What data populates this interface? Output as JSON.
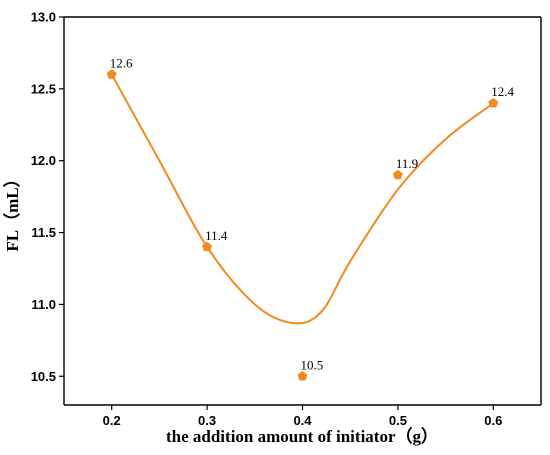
{
  "chart_data": {
    "type": "scatter",
    "x": [
      0.2,
      0.3,
      0.4,
      0.5,
      0.6
    ],
    "y": [
      12.6,
      11.4,
      10.5,
      11.9,
      12.4
    ],
    "data_labels": [
      "12.6",
      "11.4",
      "10.5",
      "11.9",
      "12.4"
    ],
    "xlabel": "the addition amount of initiator（g）",
    "ylabel": "FL（mL）",
    "x_ticks": [
      "0.2",
      "0.3",
      "0.4",
      "0.5",
      "0.6"
    ],
    "y_ticks": [
      "10.5",
      "11.0",
      "11.5",
      "12.0",
      "12.5",
      "13.0"
    ],
    "xlim": [
      0.15,
      0.65
    ],
    "ylim": [
      10.3,
      13.0
    ],
    "grid": false,
    "legend": "none",
    "marker": "pentagon",
    "fit_curve": {
      "type": "smooth",
      "x": [
        0.2,
        0.25,
        0.3,
        0.35,
        0.39,
        0.42,
        0.45,
        0.5,
        0.55,
        0.6
      ],
      "y": [
        12.6,
        12.0,
        11.4,
        11.0,
        10.87,
        10.95,
        11.3,
        11.8,
        12.15,
        12.4
      ]
    },
    "color": "#F28A20"
  }
}
